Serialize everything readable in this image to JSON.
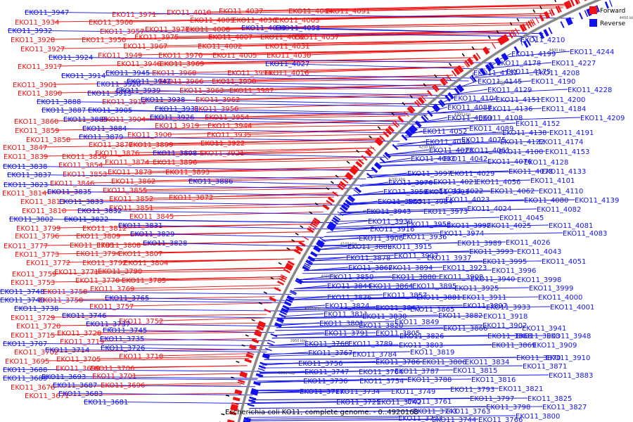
{
  "legend": [
    {
      "label": "Forward",
      "color": "#ee1111"
    },
    {
      "label": "Reverse",
      "color": "#1111ee"
    }
  ],
  "caption": "Escherichia coli KO11, complete genome. - 0..4920168",
  "colors": {
    "forward": "#ee1111",
    "reverse": "#1111ee",
    "backbone": "#888888"
  },
  "kbp_ticks": [
    "3900 kbp",
    "3950 kbp",
    "4000 kbp",
    "4050 kbp",
    "4100 kbp",
    "4150 kbp",
    "4200 kbp",
    "4250 kbp",
    "4300 kbp",
    "4350 kbp",
    "4400 kbp",
    "4450 kbp"
  ],
  "forward_labels": [
    [
      "EKO11_4010",
      237,
      13
    ],
    [
      "EKO11_4037",
      311,
      11
    ],
    [
      "EKO11_4064",
      410,
      11
    ],
    [
      "EKO11_4091",
      463,
      11
    ],
    [
      "EKO11_3971",
      159,
      16
    ],
    [
      "EKO11_4009",
      270,
      24
    ],
    [
      "EKO11_4036",
      330,
      24
    ],
    [
      "EKO11_4063",
      391,
      24
    ],
    [
      "EKO11_3934",
      21,
      27
    ],
    [
      "EKO11_3960",
      126,
      27
    ],
    [
      "EKO11_3957",
      142,
      40
    ],
    [
      "EKO11_4008",
      264,
      37
    ],
    [
      "EKO11_3977",
      206,
      37
    ],
    [
      "EKO11_4007",
      296,
      48
    ],
    [
      "EKO11_4032",
      370,
      48
    ],
    [
      "EKO11_4057",
      419,
      48
    ],
    [
      "EKO11_3928",
      15,
      52
    ],
    [
      "EKO11_3950",
      116,
      52
    ],
    [
      "EKO11_3975",
      191,
      48
    ],
    [
      "EKO11_3967",
      175,
      61
    ],
    [
      "EKO11_4002",
      281,
      61
    ],
    [
      "EKO11_4031",
      377,
      61
    ],
    [
      "EKO11_3927",
      29,
      65
    ],
    [
      "EKO11_3949",
      139,
      74
    ],
    [
      "EKO11_3970",
      225,
      74
    ],
    [
      "EKO11_4005",
      302,
      74
    ],
    [
      "EKO11_4030",
      379,
      74
    ],
    [
      "EKO11_3946",
      166,
      86
    ],
    [
      "EKO11_3969",
      227,
      86
    ],
    [
      "EKO11_3917",
      25,
      90
    ],
    [
      "EKO11_3968",
      216,
      99
    ],
    [
      "EKO11_3994",
      323,
      99
    ],
    [
      "EKO11_4016",
      376,
      99
    ],
    [
      "EKO11_3966",
      226,
      111
    ],
    [
      "EKO11_3990",
      301,
      111
    ],
    [
      "EKO11_3901",
      18,
      116
    ],
    [
      "EKO11_3963",
      255,
      124
    ],
    [
      "EKO11_3987",
      326,
      124
    ],
    [
      "EKO11_3890",
      25,
      128
    ],
    [
      "EKO11_3962",
      278,
      137
    ],
    [
      "EKO11_3912",
      145,
      140
    ],
    [
      "EKO11_3956",
      276,
      150
    ],
    [
      "EKO11_3954",
      291,
      162
    ],
    [
      "EKO11_3904",
      144,
      165
    ],
    [
      "EKO11_3860",
      20,
      168
    ],
    [
      "EKO11_3919",
      220,
      174
    ],
    [
      "EKO11_3944",
      295,
      174
    ],
    [
      "EKO11_3859",
      21,
      181
    ],
    [
      "EKO11_3900",
      181,
      187
    ],
    [
      "EKO11_3935",
      294,
      187
    ],
    [
      "EKO11_3858",
      37,
      194
    ],
    [
      "EKO11_3877",
      126,
      201
    ],
    [
      "EKO11_3899",
      183,
      201
    ],
    [
      "EKO11_3922",
      285,
      199
    ],
    [
      "EKO11_3847",
      4,
      205
    ],
    [
      "EKO11_3856",
      88,
      218
    ],
    [
      "EKO11_3876",
      135,
      213
    ],
    [
      "EKO11_3921",
      284,
      213
    ],
    [
      "EKO11_3839",
      5,
      218
    ],
    [
      "EKO11_3854",
      83,
      230
    ],
    [
      "EKO11_3874",
      149,
      226
    ],
    [
      "EKO11_3896",
      217,
      226
    ],
    [
      "EKO11_3873",
      153,
      240
    ],
    [
      "EKO11_3893",
      235,
      240
    ],
    [
      "EKO11_3853",
      89,
      243
    ],
    [
      "EKO11_3862",
      158,
      253
    ],
    [
      "EKO11_3846",
      71,
      256
    ],
    [
      "EKO11_3855",
      146,
      266
    ],
    [
      "EKO11_3872",
      240,
      276
    ],
    [
      "EKO11_3814",
      3,
      270
    ],
    [
      "EKO11_3852",
      155,
      278
    ],
    [
      "EKO11_3813",
      29,
      282
    ],
    [
      "EKO11_3851",
      155,
      291
    ],
    [
      "EKO11_3810",
      31,
      295
    ],
    [
      "EKO11_3845",
      184,
      303
    ],
    [
      "EKO11_3799",
      23,
      320
    ],
    [
      "EKO11_3812",
      117,
      320
    ],
    [
      "EKO11_3796",
      21,
      331
    ],
    [
      "EKO11_3809",
      108,
      331
    ],
    [
      "EKO11_3808",
      137,
      344
    ],
    [
      "EKO11_3777",
      5,
      345
    ],
    [
      "EKO11_3795",
      99,
      344
    ],
    [
      "EKO11_3807",
      168,
      356
    ],
    [
      "EKO11_3773",
      21,
      357
    ],
    [
      "EKO11_3794",
      108,
      356
    ],
    [
      "EKO11_3772",
      37,
      369
    ],
    [
      "EKO11_3792",
      117,
      369
    ],
    [
      "EKO11_3804",
      176,
      369
    ],
    [
      "EKO11_3790",
      139,
      381
    ],
    [
      "EKO11_3759",
      17,
      385
    ],
    [
      "EKO11_3771",
      77,
      382
    ],
    [
      "EKO11_3753",
      15,
      397
    ],
    [
      "EKO11_3770",
      107,
      394
    ],
    [
      "EKO11_3785",
      173,
      394
    ],
    [
      "EKO11_3769",
      128,
      406
    ],
    [
      "EKO11_3758",
      61,
      410
    ],
    [
      "EKO11_3750",
      55,
      422
    ],
    [
      "EKO11_3757",
      127,
      431
    ],
    [
      "EKO11_3729",
      15,
      447
    ],
    [
      "EKO11_3752",
      169,
      452
    ],
    [
      "EKO11_3720",
      23,
      459
    ],
    [
      "EKO11_3715",
      15,
      472
    ],
    [
      "EKO11_3728",
      81,
      469
    ],
    [
      "EKO11_3719",
      85,
      481
    ],
    [
      "EKO11_3702",
      20,
      496
    ],
    [
      "EKO11_3718",
      169,
      502
    ],
    [
      "EKO11_3695",
      7,
      509
    ],
    [
      "EKO11_3705",
      80,
      506
    ],
    [
      "EKO11_3706",
      128,
      519
    ],
    [
      "EKO11_3699",
      79,
      519
    ],
    [
      "EKO11_3701",
      131,
      530
    ],
    [
      "EKO11_3676",
      15,
      546
    ],
    [
      "EKO11_3696",
      143,
      543
    ],
    [
      "EKO11_3671",
      35,
      558
    ]
  ],
  "reverse_labels": [
    [
      "EKO11_3947",
      35,
      13
    ],
    [
      "EKO11_3932",
      11,
      39
    ],
    [
      "EKO11_4058",
      392,
      35
    ],
    [
      "EKO11_4033",
      343,
      35
    ],
    [
      "EKO11_3924",
      69,
      77
    ],
    [
      "EKO11_4027",
      377,
      86
    ],
    [
      "EKO11_3914",
      87,
      103
    ],
    [
      "EKO11_3920",
      137,
      115
    ],
    [
      "EKO11_3945",
      150,
      99
    ],
    [
      "EKO11_3942",
      180,
      111
    ],
    [
      "EKO11_3939",
      165,
      124
    ],
    [
      "EKO11_3913",
      124,
      128
    ],
    [
      "EKO11_3938",
      200,
      137
    ],
    [
      "EKO11_3888",
      52,
      140
    ],
    [
      "EKO11_3887",
      59,
      152
    ],
    [
      "EKO11_3905",
      125,
      152
    ],
    [
      "EKO11_3931",
      220,
      150
    ],
    [
      "EKO11_3926",
      213,
      162
    ],
    [
      "EKO11_3885",
      90,
      165
    ],
    [
      "EKO11_3884",
      117,
      178
    ],
    [
      "EKO11_3879",
      112,
      190
    ],
    [
      "EKO11_3898",
      217,
      213
    ],
    [
      "EKO11_3838",
      4,
      232
    ],
    [
      "EKO11_3837",
      10,
      244
    ],
    [
      "EKO11_3886",
      268,
      253
    ],
    [
      "EKO11_3823",
      5,
      258
    ],
    [
      "EKO11_3835",
      67,
      268
    ],
    [
      "EKO11_3833",
      84,
      282
    ],
    [
      "EKO11_3832",
      110,
      295
    ],
    [
      "EKO11_3802",
      13,
      307
    ],
    [
      "EKO11_3822",
      91,
      307
    ],
    [
      "EKO11_3831",
      168,
      316
    ],
    [
      "EKO11_3829",
      185,
      328
    ],
    [
      "EKO11_3828",
      203,
      341
    ],
    [
      "EKO11_3765",
      149,
      419
    ],
    [
      "EKO11_3746",
      88,
      444
    ],
    [
      "EKO11_3748",
      0,
      410
    ],
    [
      "EKO11_3740",
      0,
      422
    ],
    [
      "EKO11_3738",
      20,
      434
    ],
    [
      "EKO11_3737",
      122,
      456
    ],
    [
      "EKO11_3745",
      146,
      465
    ],
    [
      "EKO11_3735",
      142,
      477
    ],
    [
      "EKO11_3726",
      143,
      490
    ],
    [
      "EKO11_3707",
      4,
      484
    ],
    [
      "EKO11_3714",
      64,
      493
    ],
    [
      "EKO11_3693",
      59,
      531
    ],
    [
      "EKO11_3688",
      4,
      521
    ],
    [
      "EKO11_3685",
      4,
      533
    ],
    [
      "EKO11_3687",
      75,
      543
    ],
    [
      "EKO11_3683",
      83,
      555
    ],
    [
      "EKO11_3681",
      119,
      567
    ],
    [
      "EKO11_4210",
      740,
      52
    ],
    [
      "EKO11_4244",
      810,
      69
    ],
    [
      "EKO11_4199",
      727,
      72
    ],
    [
      "EKO11_4227",
      784,
      85
    ],
    [
      "EKO11_4178",
      706,
      85
    ],
    [
      "EKO11_4175",
      720,
      97
    ],
    [
      "EKO11_4208",
      761,
      99
    ],
    [
      "EKO11_4157",
      673,
      99
    ],
    [
      "EKO11_4190",
      755,
      111
    ],
    [
      "EKO11_4145",
      679,
      111
    ],
    [
      "EKO11_4228",
      807,
      123
    ],
    [
      "EKO11_4129",
      693,
      123
    ],
    [
      "EKO11_4151",
      705,
      137
    ],
    [
      "EKO11_4200",
      769,
      137
    ],
    [
      "EKO11_4104",
      645,
      135
    ],
    [
      "EKO11_4088",
      636,
      148
    ],
    [
      "EKO11_4136",
      694,
      150
    ],
    [
      "EKO11_4184",
      770,
      150
    ],
    [
      "EKO11_4069",
      636,
      163
    ],
    [
      "EKO11_4108",
      680,
      163
    ],
    [
      "EKO11_4209",
      825,
      163
    ],
    [
      "EKO11_4152",
      733,
      171
    ],
    [
      "EKO11_4052",
      601,
      182
    ],
    [
      "EKO11_4089",
      667,
      178
    ],
    [
      "EKO11_4138",
      714,
      184
    ],
    [
      "EKO11_4191",
      781,
      184
    ],
    [
      "EKO11_4034",
      605,
      197
    ],
    [
      "EKO11_4075",
      656,
      194
    ],
    [
      "EKO11_4122",
      711,
      197
    ],
    [
      "EKO11_4174",
      766,
      197
    ],
    [
      "EKO11_4028",
      610,
      209
    ],
    [
      "EKO11_4061",
      662,
      209
    ],
    [
      "EKO11_4100",
      709,
      211
    ],
    [
      "EKO11_4153",
      775,
      211
    ],
    [
      "EKO11_4003",
      584,
      221
    ],
    [
      "EKO11_4042",
      630,
      221
    ],
    [
      "EKO11_4076",
      693,
      225
    ],
    [
      "EKO11_4128",
      745,
      226
    ],
    [
      "EKO11_4078",
      723,
      239
    ],
    [
      "EKO11_4133",
      770,
      239
    ],
    [
      "EKO11_3997",
      579,
      242
    ],
    [
      "EKO11_4029",
      640,
      242
    ],
    [
      "EKO11_4021",
      616,
      254
    ],
    [
      "EKO11_4056",
      677,
      254
    ],
    [
      "EKO11_4101",
      754,
      252
    ],
    [
      "EKO11_3976",
      552,
      255
    ],
    [
      "EKO11_4022",
      624,
      267
    ],
    [
      "EKO11_4062",
      697,
      267
    ],
    [
      "EKO11_4110",
      766,
      267
    ],
    [
      "EKO11_3959",
      545,
      268
    ],
    [
      "EKO11_3991",
      604,
      268
    ],
    [
      "EKO11_4023",
      633,
      279
    ],
    [
      "EKO11_4080",
      745,
      280
    ],
    [
      "EKO11_4139",
      817,
      280
    ],
    [
      "EKO11_3955",
      537,
      282
    ],
    [
      "EKO11_3984",
      580,
      282
    ],
    [
      "EKO11_4024",
      664,
      292
    ],
    [
      "EKO11_4082",
      763,
      293
    ],
    [
      "EKO11_3943",
      521,
      296
    ],
    [
      "EKO11_3973",
      602,
      296
    ],
    [
      "EKO11_4045",
      710,
      305
    ],
    [
      "EKO11_3930",
      523,
      310
    ],
    [
      "EKO11_3958",
      578,
      314
    ],
    [
      "EKO11_3992",
      635,
      316
    ],
    [
      "EKO11_4025",
      692,
      316
    ],
    [
      "EKO11_4081",
      780,
      316
    ],
    [
      "EKO11_3916",
      526,
      321
    ],
    [
      "EKO11_3974",
      625,
      327
    ],
    [
      "EKO11_4083",
      800,
      327
    ],
    [
      "EKO11_3906",
      510,
      334
    ],
    [
      "EKO11_3936",
      572,
      332
    ],
    [
      "EKO11_3989",
      650,
      341
    ],
    [
      "EKO11_4026",
      719,
      340
    ],
    [
      "EKO11_3889",
      494,
      346
    ],
    [
      "EKO11_3915",
      551,
      346
    ],
    [
      "EKO11_3993",
      667,
      353
    ],
    [
      "EKO11_4043",
      735,
      353
    ],
    [
      "EKO11_3878",
      492,
      362
    ],
    [
      "EKO11_3907",
      560,
      359
    ],
    [
      "EKO11_3937",
      607,
      362
    ],
    [
      "EKO11_3995",
      686,
      367
    ],
    [
      "EKO11_4051",
      770,
      367
    ],
    [
      "EKO11_3867",
      495,
      376
    ],
    [
      "EKO11_3894",
      552,
      376
    ],
    [
      "EKO11_3923",
      629,
      376
    ],
    [
      "EKO11_3996",
      699,
      380
    ],
    [
      "EKO11_3850",
      468,
      389
    ],
    [
      "EKO11_3880",
      557,
      389
    ],
    [
      "EKO11_3908",
      624,
      389
    ],
    [
      "EKO11_3940",
      669,
      392
    ],
    [
      "EKO11_3998",
      735,
      393
    ],
    [
      "EKO11_3844",
      465,
      402
    ],
    [
      "EKO11_3864",
      524,
      402
    ],
    [
      "EKO11_3895",
      586,
      402
    ],
    [
      "EKO11_3925",
      646,
      405
    ],
    [
      "EKO11_3999",
      752,
      405
    ],
    [
      "EKO11_3836",
      465,
      418
    ],
    [
      "EKO11_3857",
      544,
      415
    ],
    [
      "EKO11_3881",
      592,
      418
    ],
    [
      "EKO11_3911",
      657,
      418
    ],
    [
      "EKO11_4000",
      765,
      418
    ],
    [
      "EKO11_3824",
      462,
      430
    ],
    [
      "EKO11_3843",
      534,
      433
    ],
    [
      "EKO11_3865",
      583,
      435
    ],
    [
      "EKO11_3897",
      658,
      430
    ],
    [
      "EKO11_3933",
      691,
      432
    ],
    [
      "EKO11_4001",
      782,
      432
    ],
    [
      "EKO11_3811",
      460,
      442
    ],
    [
      "EKO11_3830",
      515,
      445
    ],
    [
      "EKO11_3882",
      623,
      444
    ],
    [
      "EKO11_3918",
      687,
      445
    ],
    [
      "EKO11_3801",
      454,
      455
    ],
    [
      "EKO11_3820",
      510,
      458
    ],
    [
      "EKO11_3849",
      561,
      453
    ],
    [
      "EKO11_3866",
      630,
      462
    ],
    [
      "EKO11_3902",
      686,
      458
    ],
    [
      "EKO11_3941",
      742,
      462
    ],
    [
      "EKO11_3791",
      461,
      469
    ],
    [
      "EKO11_3805",
      534,
      469
    ],
    [
      "EKO11_3826",
      568,
      473
    ],
    [
      "EKO11_3868",
      693,
      473
    ],
    [
      "EKO11_3903",
      733,
      473
    ],
    [
      "EKO11_3948",
      777,
      473
    ],
    [
      "EKO11_3768",
      433,
      484
    ],
    [
      "EKO11_3789",
      495,
      484
    ],
    [
      "EKO11_3803",
      567,
      486
    ],
    [
      "EKO11_3869",
      699,
      486
    ],
    [
      "EKO11_3909",
      757,
      486
    ],
    [
      "EKO11_3767",
      438,
      497
    ],
    [
      "EKO11_3784",
      501,
      499
    ],
    [
      "EKO11_3819",
      583,
      496
    ],
    [
      "EKO11_3870",
      734,
      504
    ],
    [
      "EKO11_3910",
      776,
      504
    ],
    [
      "EKO11_3756",
      424,
      512
    ],
    [
      "EKO11_3786",
      534,
      510
    ],
    [
      "EKO11_3806",
      600,
      510
    ],
    [
      "EKO11_3834",
      661,
      510
    ],
    [
      "EKO11_3871",
      743,
      516
    ],
    [
      "EKO11_3747",
      433,
      524
    ],
    [
      "EKO11_3764",
      510,
      524
    ],
    [
      "EKO11_3787",
      561,
      523
    ],
    [
      "EKO11_3815",
      644,
      522
    ],
    [
      "EKO11_3883",
      780,
      529
    ],
    [
      "EKO11_3736",
      431,
      537
    ],
    [
      "EKO11_3754",
      511,
      537
    ],
    [
      "EKO11_3788",
      579,
      535
    ],
    [
      "EKO11_3816",
      670,
      535
    ],
    [
      "EKO11_3717",
      426,
      552
    ],
    [
      "EKO11_3734",
      477,
      552
    ],
    [
      "EKO11_3749",
      556,
      552
    ],
    [
      "EKO11_3793",
      640,
      549
    ],
    [
      "EKO11_3821",
      709,
      548
    ],
    [
      "EKO11_3761",
      579,
      566
    ],
    [
      "EKO11_3797",
      668,
      562
    ],
    [
      "EKO11_3825",
      750,
      562
    ],
    [
      "EKO11_3725",
      478,
      567
    ],
    [
      "EKO11_3742",
      536,
      567
    ],
    [
      "EKO11_3798",
      691,
      574
    ],
    [
      "EKO11_3827",
      771,
      574
    ],
    [
      "EKO11_3743",
      587,
      580
    ],
    [
      "EKO11_3763",
      634,
      580
    ],
    [
      "EKO11_3727",
      566,
      590
    ],
    [
      "EKO11_3744",
      614,
      592
    ],
    [
      "EKO11_3766",
      680,
      592
    ],
    [
      "EKO11_3800",
      733,
      587
    ]
  ]
}
